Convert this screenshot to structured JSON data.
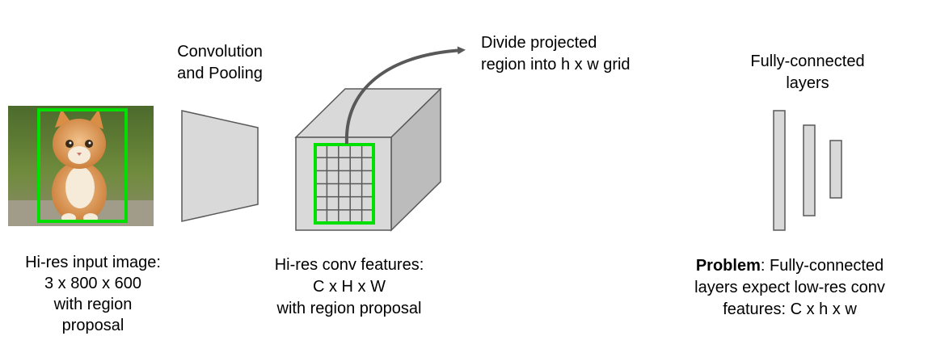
{
  "input": {
    "caption_lines": [
      "Hi-res input image:",
      "3 x 800 x 600",
      "with region",
      "proposal"
    ],
    "image_subject": "kitten-photo"
  },
  "conv_pool": {
    "label_lines": [
      "Convolution",
      "and Pooling"
    ]
  },
  "conv_features": {
    "caption_lines": [
      "Hi-res conv features:",
      "C x H x W",
      "with region proposal"
    ],
    "grid": {
      "rows": 6,
      "cols": 5
    }
  },
  "arrow_note": {
    "label_lines": [
      "Divide projected",
      "region into h x w grid"
    ]
  },
  "fc": {
    "label_lines": [
      "Fully-connected",
      "layers"
    ]
  },
  "problem": {
    "bold": "Problem",
    "line1_rest": ": Fully-connected",
    "line2": "layers expect low-res conv",
    "line3": "features: C x h x w"
  },
  "colors": {
    "region_box": "#00e000",
    "shape_fill": "#d9d9d9",
    "shape_side": "#bcbcbc",
    "shape_stroke": "#595959",
    "arrow": "#595959"
  }
}
